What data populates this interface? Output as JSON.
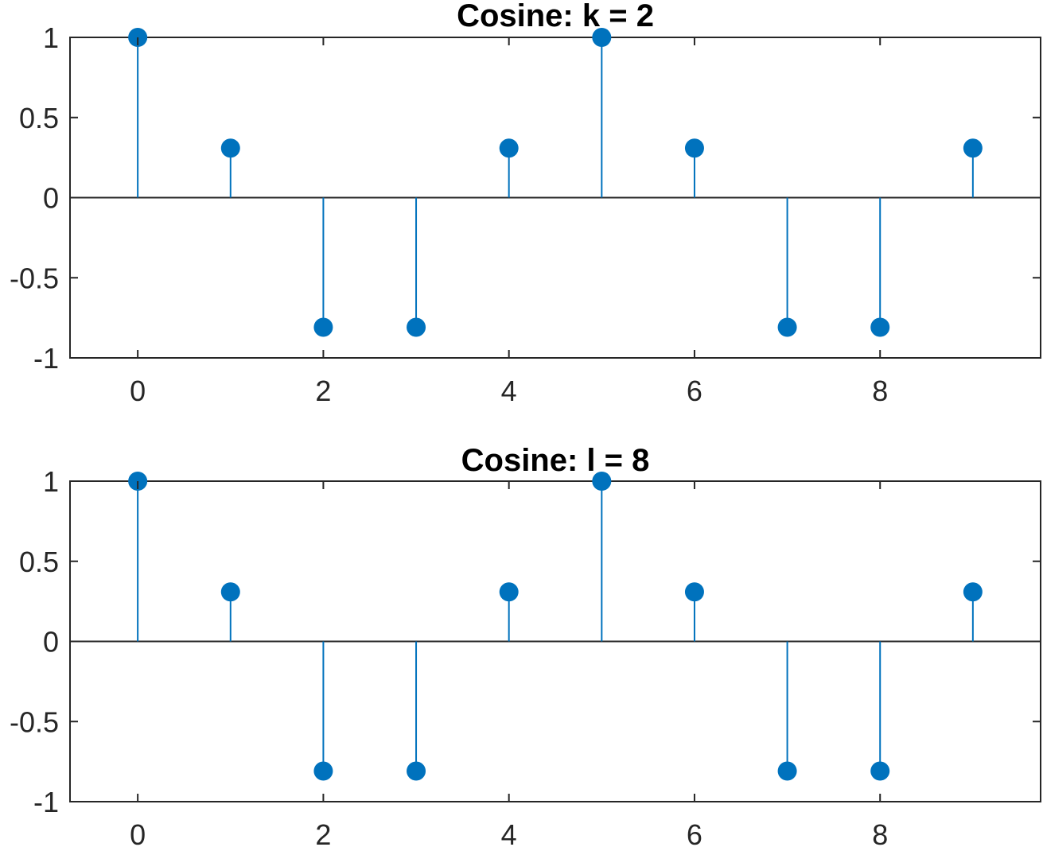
{
  "chart_data": [
    {
      "type": "stem",
      "title": "Cosine: k = 2",
      "xlabel": "",
      "ylabel": "",
      "x": [
        0,
        1,
        2,
        3,
        4,
        5,
        6,
        7,
        8,
        9
      ],
      "y": [
        1,
        0.309,
        -0.809,
        -0.809,
        0.309,
        1,
        0.309,
        -0.809,
        -0.809,
        0.309
      ],
      "xlim": [
        -0.73,
        9.73
      ],
      "ylim": [
        -1,
        1
      ],
      "xticks": [
        "0",
        "2",
        "4",
        "6",
        "8"
      ],
      "xtick_values": [
        0,
        2,
        4,
        6,
        8
      ],
      "yticks": [
        "1",
        "0.5",
        "0",
        "-0.5",
        "-1"
      ],
      "ytick_values": [
        1,
        0.5,
        0,
        -0.5,
        -1
      ],
      "grid": false,
      "color": "#0072BD"
    },
    {
      "type": "stem",
      "title": "Cosine: l = 8",
      "xlabel": "",
      "ylabel": "",
      "x": [
        0,
        1,
        2,
        3,
        4,
        5,
        6,
        7,
        8,
        9
      ],
      "y": [
        1,
        0.309,
        -0.809,
        -0.809,
        0.309,
        1,
        0.309,
        -0.809,
        -0.809,
        0.309
      ],
      "xlim": [
        -0.73,
        9.73
      ],
      "ylim": [
        -1,
        1
      ],
      "xticks": [
        "0",
        "2",
        "4",
        "6",
        "8"
      ],
      "xtick_values": [
        0,
        2,
        4,
        6,
        8
      ],
      "yticks": [
        "1",
        "0.5",
        "0",
        "-0.5",
        "-1"
      ],
      "ytick_values": [
        1,
        0.5,
        0,
        -0.5,
        -1
      ],
      "grid": false,
      "color": "#0072BD"
    }
  ]
}
